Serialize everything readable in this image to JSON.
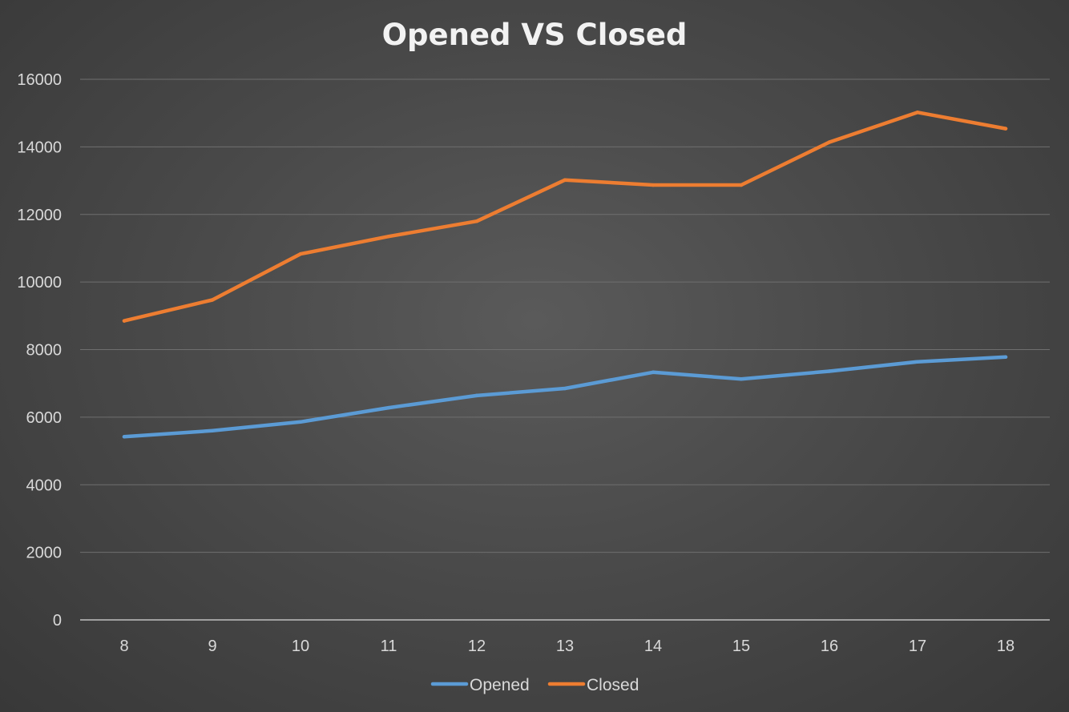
{
  "chart_data": {
    "type": "line",
    "title": "Opened VS Closed",
    "xlabel": "",
    "ylabel": "",
    "x": [
      "8",
      "9",
      "10",
      "11",
      "12",
      "13",
      "14",
      "15",
      "16",
      "17",
      "18"
    ],
    "ylim": [
      0,
      16000
    ],
    "yticks": [
      "0",
      "2000",
      "4000",
      "6000",
      "8000",
      "10000",
      "12000",
      "14000",
      "16000"
    ],
    "grid": true,
    "legend_position": "bottom",
    "series": [
      {
        "name": "Opened",
        "color": "#5b9bd5",
        "values": [
          5420,
          5600,
          5860,
          6280,
          6640,
          6850,
          7330,
          7130,
          7360,
          7640,
          7780
        ]
      },
      {
        "name": "Closed",
        "color": "#ed7d31",
        "values": [
          8850,
          9470,
          10830,
          11350,
          11800,
          13020,
          12870,
          12870,
          14140,
          15020,
          14540
        ]
      }
    ]
  }
}
